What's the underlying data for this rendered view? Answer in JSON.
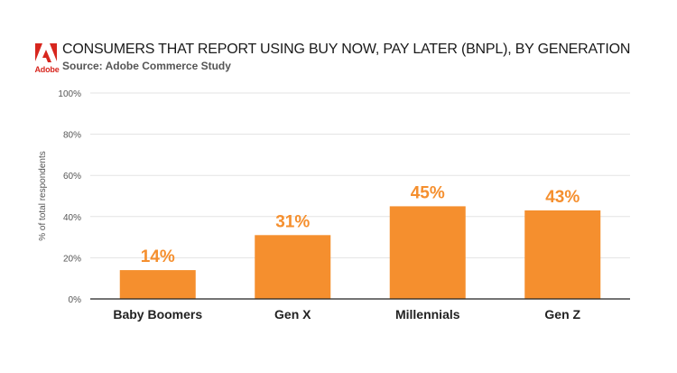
{
  "header": {
    "logo_text": "Adobe",
    "title": "CONSUMERS THAT REPORT USING BUY NOW, PAY LATER (BNPL), BY GENERATION",
    "subtitle": "Source: Adobe Commerce Study"
  },
  "colors": {
    "bar": "#f58f2e",
    "label": "#f58f2e",
    "grid": "#e3e3e3",
    "axis": "#222222",
    "brand": "#d7261e"
  },
  "chart_data": {
    "type": "bar",
    "categories": [
      "Baby Boomers",
      "Gen X",
      "Millennials",
      "Gen Z"
    ],
    "values": [
      14,
      31,
      45,
      43
    ],
    "data_labels": [
      "14%",
      "31%",
      "45%",
      "43%"
    ],
    "title": "CONSUMERS THAT REPORT USING BUY NOW, PAY LATER (BNPL), BY GENERATION",
    "subtitle": "Source: Adobe Commerce Study",
    "xlabel": "",
    "ylabel": "% of total respondents",
    "ylim": [
      0,
      100
    ],
    "yticks": [
      0,
      20,
      40,
      60,
      80,
      100
    ],
    "ytick_labels": [
      "0%",
      "20%",
      "40%",
      "60%",
      "80%",
      "100%"
    ],
    "grid": true,
    "legend": "none"
  }
}
